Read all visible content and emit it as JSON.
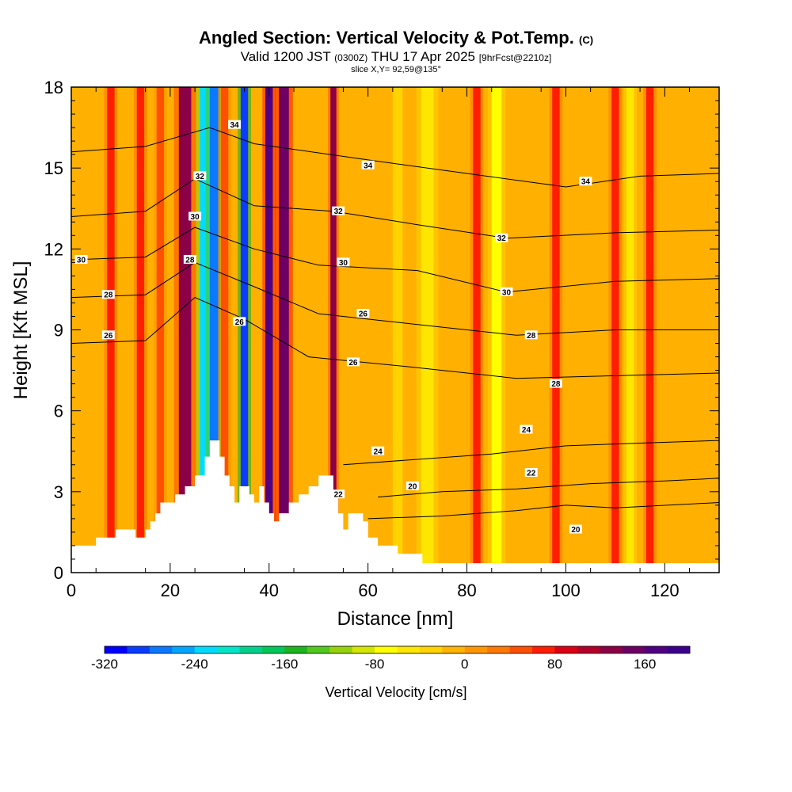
{
  "title": {
    "main": "Angled Section: Vertical Velocity & Pot.Temp.",
    "tag": "(C)",
    "valid_a": "Valid 1200 JST",
    "valid_utc": "(0300Z)",
    "valid_b": "THU 17 Apr 2025",
    "fcst": "[9hrFcst@2210z]",
    "slice": "slice X,Y= 92,59@135°"
  },
  "chart_data": {
    "type": "heatmap",
    "xlabel": "Distance [nm]",
    "ylabel": "Height [Kft MSL]",
    "xlim": [
      0,
      131
    ],
    "ylim": [
      0,
      18
    ],
    "x_ticks": [
      0,
      20,
      40,
      60,
      80,
      100,
      120
    ],
    "y_ticks": [
      0,
      3,
      6,
      9,
      12,
      15,
      18
    ],
    "colorbar": {
      "title": "Vertical Velocity [cm/s]",
      "min": -320,
      "max": 200,
      "step": 20,
      "tick_values": [
        -320,
        -240,
        -160,
        -80,
        0,
        80,
        160
      ],
      "colors": [
        "#0000ff",
        "#0a3cff",
        "#0a78ff",
        "#00a5ff",
        "#00dcff",
        "#00e6c8",
        "#00d28c",
        "#00c85a",
        "#1eb41e",
        "#50c81e",
        "#96d20a",
        "#d2e600",
        "#ffff00",
        "#ffe600",
        "#ffd200",
        "#ffb400",
        "#ff9600",
        "#ff7800",
        "#ff5000",
        "#ff1e00",
        "#dc0014",
        "#b40028",
        "#8c0046",
        "#6e0064",
        "#500082",
        "#3c008c"
      ]
    },
    "velocity_bands": [
      {
        "x": 23,
        "w": 2.5,
        "v": 120
      },
      {
        "x": 27,
        "w": 2.0,
        "v": -240
      },
      {
        "x": 29,
        "w": 2.0,
        "v": -280
      },
      {
        "x": 31,
        "w": 1.5,
        "v": 40
      },
      {
        "x": 35,
        "w": 1.5,
        "v": -300
      },
      {
        "x": 40,
        "w": 1.5,
        "v": 160
      },
      {
        "x": 43,
        "w": 2.0,
        "v": 140
      },
      {
        "x": 53,
        "w": 1.2,
        "v": 120
      },
      {
        "x": 8,
        "w": 1.5,
        "v": 60
      },
      {
        "x": 14,
        "w": 1.5,
        "v": 60
      },
      {
        "x": 18,
        "w": 1.5,
        "v": 40
      },
      {
        "x": 66,
        "w": 2.0,
        "v": -40
      },
      {
        "x": 72,
        "w": 2.5,
        "v": -60
      },
      {
        "x": 82,
        "w": 1.5,
        "v": 60
      },
      {
        "x": 86,
        "w": 2.0,
        "v": -80
      },
      {
        "x": 98,
        "w": 1.5,
        "v": 60
      },
      {
        "x": 110,
        "w": 1.5,
        "v": 60
      },
      {
        "x": 113,
        "w": 1.5,
        "v": -60
      },
      {
        "x": 117,
        "w": 1.5,
        "v": 60
      }
    ],
    "theta_contours": [
      {
        "level": 20,
        "points": [
          [
            60,
            2.0
          ],
          [
            75,
            2.1
          ],
          [
            90,
            2.3
          ],
          [
            100,
            2.5
          ],
          [
            110,
            2.4
          ],
          [
            131,
            2.6
          ]
        ]
      },
      {
        "level": 22,
        "points": [
          [
            62,
            2.8
          ],
          [
            75,
            3.0
          ],
          [
            90,
            3.1
          ],
          [
            105,
            3.3
          ],
          [
            120,
            3.4
          ],
          [
            131,
            3.5
          ]
        ]
      },
      {
        "level": 24,
        "points": [
          [
            55,
            4.0
          ],
          [
            70,
            4.2
          ],
          [
            85,
            4.4
          ],
          [
            100,
            4.7
          ],
          [
            115,
            4.8
          ],
          [
            131,
            4.9
          ]
        ]
      },
      {
        "level": 26,
        "points": [
          [
            0,
            8.5
          ],
          [
            15,
            8.6
          ],
          [
            25,
            10.2
          ],
          [
            35,
            9.4
          ],
          [
            48,
            8.0
          ],
          [
            70,
            7.6
          ],
          [
            90,
            7.2
          ],
          [
            110,
            7.3
          ],
          [
            131,
            7.4
          ]
        ]
      },
      {
        "level": 28,
        "points": [
          [
            0,
            10.2
          ],
          [
            15,
            10.3
          ],
          [
            25,
            11.5
          ],
          [
            37,
            10.6
          ],
          [
            50,
            9.6
          ],
          [
            70,
            9.2
          ],
          [
            90,
            8.8
          ],
          [
            110,
            9.0
          ],
          [
            131,
            9.0
          ]
        ]
      },
      {
        "level": 30,
        "points": [
          [
            0,
            11.6
          ],
          [
            15,
            11.7
          ],
          [
            25,
            12.8
          ],
          [
            37,
            12.0
          ],
          [
            50,
            11.4
          ],
          [
            70,
            11.2
          ],
          [
            88,
            10.4
          ],
          [
            110,
            10.8
          ],
          [
            131,
            10.9
          ]
        ]
      },
      {
        "level": 32,
        "points": [
          [
            0,
            13.2
          ],
          [
            15,
            13.4
          ],
          [
            25,
            14.6
          ],
          [
            37,
            13.6
          ],
          [
            53,
            13.4
          ],
          [
            70,
            12.9
          ],
          [
            88,
            12.4
          ],
          [
            110,
            12.6
          ],
          [
            131,
            12.7
          ]
        ]
      },
      {
        "level": 34,
        "points": [
          [
            0,
            15.6
          ],
          [
            15,
            15.8
          ],
          [
            28,
            16.5
          ],
          [
            37,
            15.9
          ],
          [
            60,
            15.3
          ],
          [
            80,
            14.8
          ],
          [
            100,
            14.3
          ],
          [
            115,
            14.7
          ],
          [
            131,
            14.8
          ]
        ]
      }
    ],
    "contour_labels": [
      {
        "level": "30",
        "x": 2,
        "y": 11.6
      },
      {
        "level": "28",
        "x": 7.5,
        "y": 10.3
      },
      {
        "level": "26",
        "x": 7.5,
        "y": 8.8
      },
      {
        "level": "32",
        "x": 26,
        "y": 14.7
      },
      {
        "level": "30",
        "x": 25,
        "y": 13.2
      },
      {
        "level": "28",
        "x": 24,
        "y": 11.6
      },
      {
        "level": "34",
        "x": 33,
        "y": 16.6
      },
      {
        "level": "26",
        "x": 34,
        "y": 9.3
      },
      {
        "level": "32",
        "x": 54,
        "y": 13.4
      },
      {
        "level": "30",
        "x": 55,
        "y": 11.5
      },
      {
        "level": "26",
        "x": 59,
        "y": 9.6
      },
      {
        "level": "26",
        "x": 57,
        "y": 7.8
      },
      {
        "level": "34",
        "x": 60,
        "y": 15.1
      },
      {
        "level": "32",
        "x": 87,
        "y": 12.4
      },
      {
        "level": "30",
        "x": 88,
        "y": 10.4
      },
      {
        "level": "28",
        "x": 93,
        "y": 8.8
      },
      {
        "level": "28",
        "x": 98,
        "y": 7.0
      },
      {
        "level": "34",
        "x": 104,
        "y": 14.5
      },
      {
        "level": "24",
        "x": 62,
        "y": 4.5
      },
      {
        "level": "24",
        "x": 92,
        "y": 5.3
      },
      {
        "level": "22",
        "x": 93,
        "y": 3.7
      },
      {
        "level": "20",
        "x": 69,
        "y": 3.2
      },
      {
        "level": "22",
        "x": 54,
        "y": 2.9
      },
      {
        "level": "20",
        "x": 102,
        "y": 1.6
      }
    ],
    "terrain": [
      [
        0,
        1.0
      ],
      [
        5,
        1.0
      ],
      [
        5,
        1.3
      ],
      [
        9,
        1.3
      ],
      [
        9,
        1.6
      ],
      [
        13,
        1.6
      ],
      [
        13,
        1.3
      ],
      [
        15,
        1.3
      ],
      [
        15,
        1.6
      ],
      [
        16,
        1.6
      ],
      [
        16,
        1.9
      ],
      [
        17,
        1.9
      ],
      [
        17,
        2.2
      ],
      [
        18,
        2.2
      ],
      [
        18,
        2.6
      ],
      [
        21,
        2.6
      ],
      [
        21,
        2.9
      ],
      [
        23,
        2.9
      ],
      [
        23,
        3.2
      ],
      [
        25,
        3.2
      ],
      [
        25,
        3.6
      ],
      [
        27,
        3.6
      ],
      [
        27,
        4.3
      ],
      [
        28,
        4.3
      ],
      [
        28,
        4.9
      ],
      [
        30,
        4.9
      ],
      [
        30,
        4.3
      ],
      [
        31,
        4.3
      ],
      [
        31,
        3.6
      ],
      [
        32,
        3.6
      ],
      [
        32,
        3.2
      ],
      [
        33,
        3.2
      ],
      [
        33,
        2.6
      ],
      [
        34,
        2.6
      ],
      [
        34,
        3.2
      ],
      [
        36,
        3.2
      ],
      [
        36,
        2.9
      ],
      [
        37,
        2.9
      ],
      [
        37,
        2.6
      ],
      [
        38,
        2.6
      ],
      [
        38,
        3.2
      ],
      [
        39,
        3.2
      ],
      [
        39,
        2.6
      ],
      [
        40,
        2.6
      ],
      [
        40,
        2.2
      ],
      [
        41,
        2.2
      ],
      [
        41,
        1.9
      ],
      [
        42,
        1.9
      ],
      [
        42,
        2.2
      ],
      [
        44,
        2.2
      ],
      [
        44,
        2.6
      ],
      [
        46,
        2.6
      ],
      [
        46,
        2.9
      ],
      [
        48,
        2.9
      ],
      [
        48,
        3.2
      ],
      [
        50,
        3.2
      ],
      [
        50,
        3.6
      ],
      [
        53,
        3.6
      ],
      [
        53,
        2.9
      ],
      [
        54,
        2.9
      ],
      [
        54,
        2.2
      ],
      [
        55,
        2.2
      ],
      [
        55,
        1.6
      ],
      [
        56,
        1.6
      ],
      [
        56,
        2.2
      ],
      [
        59,
        2.2
      ],
      [
        59,
        1.9
      ],
      [
        60,
        1.9
      ],
      [
        60,
        1.3
      ],
      [
        62,
        1.3
      ],
      [
        62,
        1.0
      ],
      [
        66,
        1.0
      ],
      [
        66,
        0.7
      ],
      [
        71,
        0.7
      ],
      [
        71,
        0.35
      ],
      [
        131,
        0.35
      ],
      [
        131,
        0
      ],
      [
        0,
        0
      ]
    ]
  }
}
